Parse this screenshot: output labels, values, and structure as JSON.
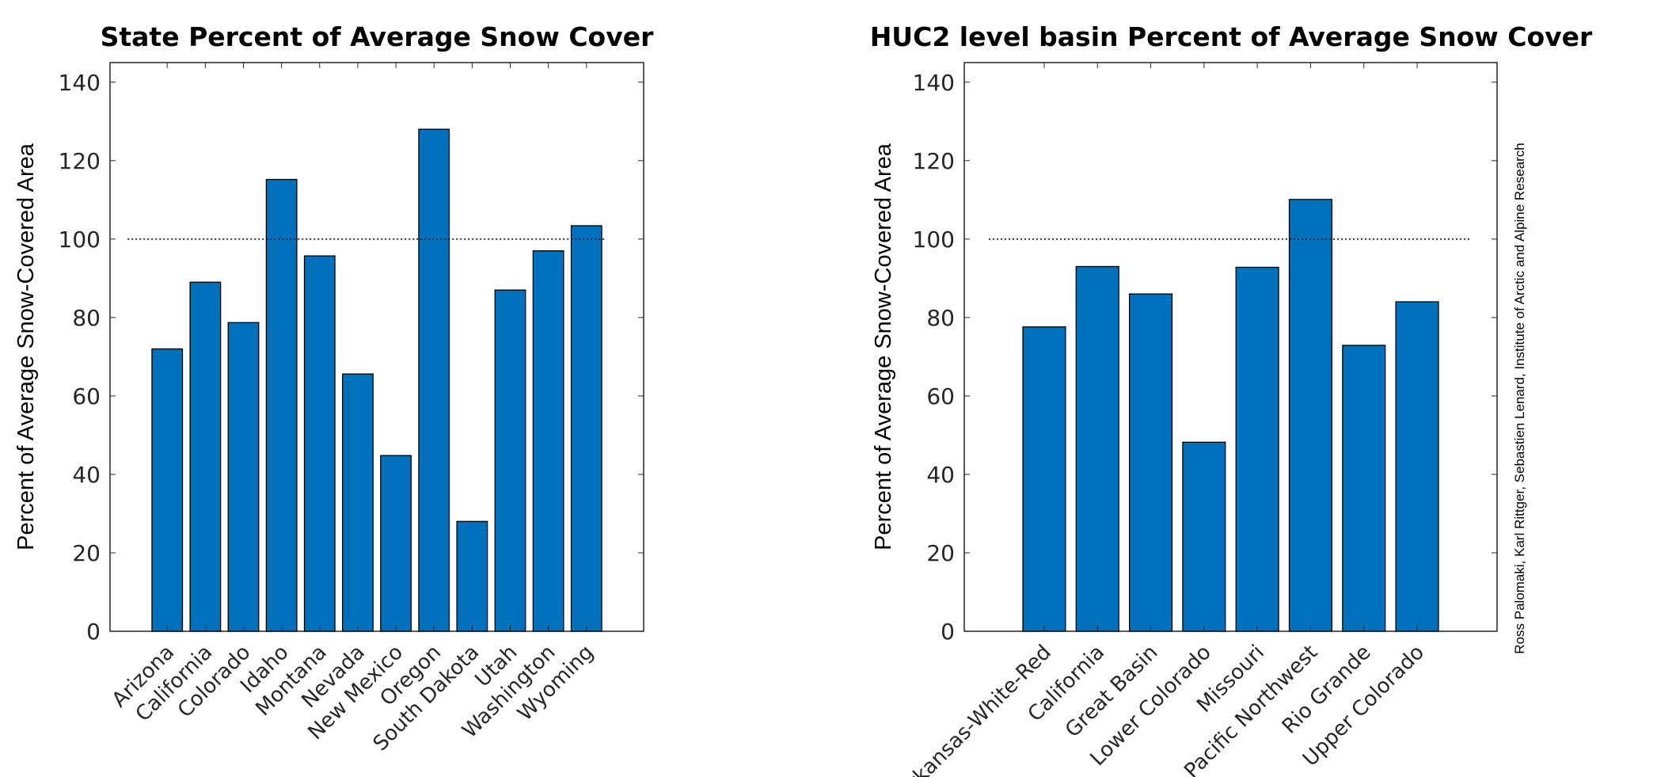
{
  "chart_data": [
    {
      "type": "bar",
      "title": "State Percent of Average Snow Cover",
      "xlabel": "",
      "ylabel": "Percent of Average Snow-Covered Area",
      "ylim": [
        0,
        145
      ],
      "yticks": [
        0,
        20,
        40,
        60,
        80,
        100,
        120,
        140
      ],
      "reference_line": 100,
      "categories": [
        "Arizona",
        "California",
        "Colorado",
        "Idaho",
        "Montana",
        "Nevada",
        "New Mexico",
        "Oregon",
        "South Dakota",
        "Utah",
        "Washington",
        "Wyoming"
      ],
      "values": [
        72,
        89,
        78.7,
        115.2,
        95.7,
        65.6,
        44.8,
        128,
        28,
        87,
        97,
        103.4
      ],
      "color": "#0072BD",
      "grid": false
    },
    {
      "type": "bar",
      "title": "HUC2 level basin Percent of Average Snow Cover",
      "xlabel": "",
      "ylabel": "Percent of Average Snow-Covered Area",
      "ylim": [
        0,
        145
      ],
      "yticks": [
        0,
        20,
        40,
        60,
        80,
        100,
        120,
        140
      ],
      "reference_line": 100,
      "categories": [
        "Arkansas-White-Red",
        "California",
        "Great Basin",
        "Lower Colorado",
        "Missouri",
        "Pacific Northwest",
        "Rio Grande",
        "Upper Colorado"
      ],
      "values": [
        77.6,
        93,
        86,
        48.2,
        92.8,
        110.1,
        72.9,
        84
      ],
      "color": "#0072BD",
      "grid": false
    }
  ],
  "credit": "Ross Palomaki, Karl Rittger, Sebastien Lenard, Institute of Arctic and Alpine Research"
}
